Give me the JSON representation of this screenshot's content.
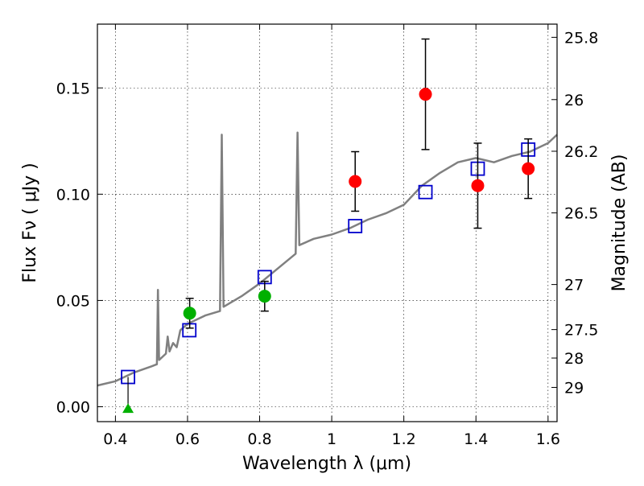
{
  "chart_data": {
    "type": "scatter",
    "title": "",
    "xlabel": "Wavelength  λ (μm)",
    "ylabel": "Flux  Fν  ( μJy )",
    "y2label": "Magnitude (AB)",
    "xlim": [
      0.35,
      1.625
    ],
    "ylim": [
      -0.007,
      0.18
    ],
    "grid": true,
    "x_ticks": [
      0.4,
      0.6,
      0.8,
      1.0,
      1.2,
      1.4,
      1.6
    ],
    "x_tick_labels": [
      "0.4",
      "0.6",
      "0.8",
      "1",
      "1.2",
      "1.4",
      "1.6"
    ],
    "y_ticks": [
      0.0,
      0.05,
      0.1,
      0.15
    ],
    "y_tick_labels": [
      "0.00",
      "0.05",
      "0.10",
      "0.15"
    ],
    "y2_ticks": [
      {
        "flux": 0.1738,
        "label": "25.8"
      },
      {
        "flux": 0.1445,
        "label": "26"
      },
      {
        "flux": 0.1202,
        "label": "26.2"
      },
      {
        "flux": 0.0912,
        "label": "26.5"
      },
      {
        "flux": 0.0575,
        "label": "27"
      },
      {
        "flux": 0.0363,
        "label": "27.5"
      },
      {
        "flux": 0.0229,
        "label": "28"
      },
      {
        "flux": 0.0091,
        "label": "29"
      }
    ],
    "series": [
      {
        "kind": "spectrum",
        "color": "#808080",
        "points": [
          [
            0.35,
            0.01
          ],
          [
            0.4,
            0.012
          ],
          [
            0.45,
            0.016
          ],
          [
            0.5,
            0.019
          ],
          [
            0.515,
            0.02
          ],
          [
            0.518,
            0.055
          ],
          [
            0.521,
            0.022
          ],
          [
            0.54,
            0.025
          ],
          [
            0.545,
            0.033
          ],
          [
            0.55,
            0.026
          ],
          [
            0.56,
            0.03
          ],
          [
            0.57,
            0.028
          ],
          [
            0.58,
            0.036
          ],
          [
            0.6,
            0.039
          ],
          [
            0.65,
            0.043
          ],
          [
            0.69,
            0.045
          ],
          [
            0.695,
            0.128
          ],
          [
            0.7,
            0.047
          ],
          [
            0.75,
            0.052
          ],
          [
            0.8,
            0.058
          ],
          [
            0.85,
            0.065
          ],
          [
            0.9,
            0.072
          ],
          [
            0.905,
            0.129
          ],
          [
            0.91,
            0.076
          ],
          [
            0.95,
            0.079
          ],
          [
            1.0,
            0.081
          ],
          [
            1.05,
            0.084
          ],
          [
            1.1,
            0.088
          ],
          [
            1.15,
            0.091
          ],
          [
            1.2,
            0.095
          ],
          [
            1.25,
            0.104
          ],
          [
            1.3,
            0.11
          ],
          [
            1.35,
            0.115
          ],
          [
            1.4,
            0.117
          ],
          [
            1.45,
            0.115
          ],
          [
            1.5,
            0.118
          ],
          [
            1.55,
            0.12
          ],
          [
            1.6,
            0.124
          ],
          [
            1.625,
            0.128
          ]
        ]
      },
      {
        "kind": "model",
        "marker": "square-open",
        "color": "#0000cc",
        "points": [
          [
            0.435,
            0.014
          ],
          [
            0.605,
            0.036
          ],
          [
            0.814,
            0.061
          ],
          [
            1.065,
            0.085
          ],
          [
            1.26,
            0.101
          ],
          [
            1.405,
            0.112
          ],
          [
            1.545,
            0.121
          ]
        ]
      },
      {
        "kind": "observed-optical",
        "marker": "circle",
        "color": "#00b000",
        "points": [
          {
            "x": 0.606,
            "y": 0.044,
            "err": 0.007
          },
          {
            "x": 0.814,
            "y": 0.052,
            "err": 0.007
          }
        ]
      },
      {
        "kind": "upper-limit",
        "marker": "triangle",
        "color": "#00b000",
        "points": [
          {
            "x": 0.435,
            "y": -0.001
          }
        ]
      },
      {
        "kind": "observed-ir",
        "marker": "circle",
        "color": "#ff0000",
        "points": [
          {
            "x": 1.065,
            "y": 0.106,
            "err": 0.014
          },
          {
            "x": 1.26,
            "y": 0.147,
            "err": 0.026
          },
          {
            "x": 1.405,
            "y": 0.104,
            "err": 0.02
          },
          {
            "x": 1.545,
            "y": 0.112,
            "err": 0.014
          }
        ]
      }
    ]
  }
}
